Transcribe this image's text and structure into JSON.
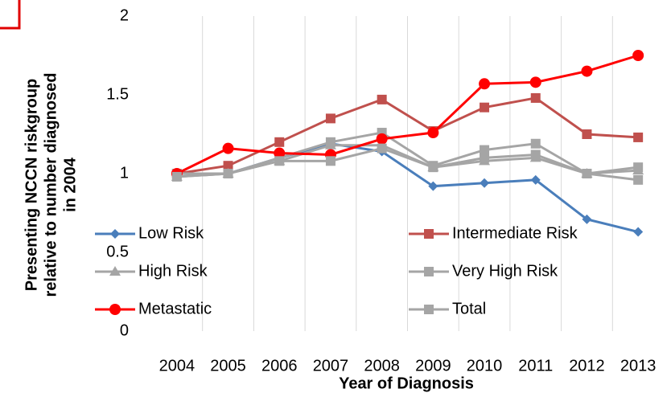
{
  "chart_data": {
    "type": "line",
    "ylabel_lines": [
      "Presenting NCCN riskgroup",
      "relative to number diagnosed",
      "in 2004"
    ],
    "xlabel": "Year of Diagnosis",
    "categories": [
      "2004",
      "2005",
      "2006",
      "2007",
      "2008",
      "2009",
      "2010",
      "2011",
      "2012",
      "2013"
    ],
    "series": [
      {
        "name": "Low Risk",
        "color": "#4a7ebb",
        "marker": "diamond",
        "values": [
          1.0,
          1.0,
          1.1,
          1.19,
          1.14,
          0.92,
          0.94,
          0.96,
          0.71,
          0.63
        ]
      },
      {
        "name": "Intermediate Risk",
        "color": "#c0504d",
        "marker": "square",
        "values": [
          1.0,
          1.05,
          1.2,
          1.35,
          1.47,
          1.27,
          1.42,
          1.48,
          1.25,
          1.23
        ]
      },
      {
        "name": "High Risk",
        "color": "#a5a5a5",
        "marker": "triangle",
        "values": [
          0.98,
          1.0,
          1.08,
          1.18,
          1.18,
          1.04,
          1.08,
          1.1,
          1.0,
          1.02
        ]
      },
      {
        "name": "Very High Risk",
        "color": "#a5a5a5",
        "marker": "square",
        "values": [
          1.0,
          1.0,
          1.1,
          1.2,
          1.26,
          1.05,
          1.15,
          1.19,
          1.0,
          1.04
        ]
      },
      {
        "name": "Metastatic",
        "color": "#ff0000",
        "marker": "circle",
        "values": [
          1.0,
          1.16,
          1.13,
          1.12,
          1.22,
          1.26,
          1.57,
          1.58,
          1.65,
          1.75
        ]
      },
      {
        "name": "Total",
        "color": "#a5a5a5",
        "marker": "square",
        "values": [
          0.98,
          1.0,
          1.08,
          1.08,
          1.16,
          1.04,
          1.1,
          1.12,
          1.0,
          0.96
        ]
      }
    ],
    "ylim": [
      0,
      2
    ],
    "yticks": [
      0,
      0.5,
      1,
      1.5,
      2
    ],
    "grid": false
  }
}
